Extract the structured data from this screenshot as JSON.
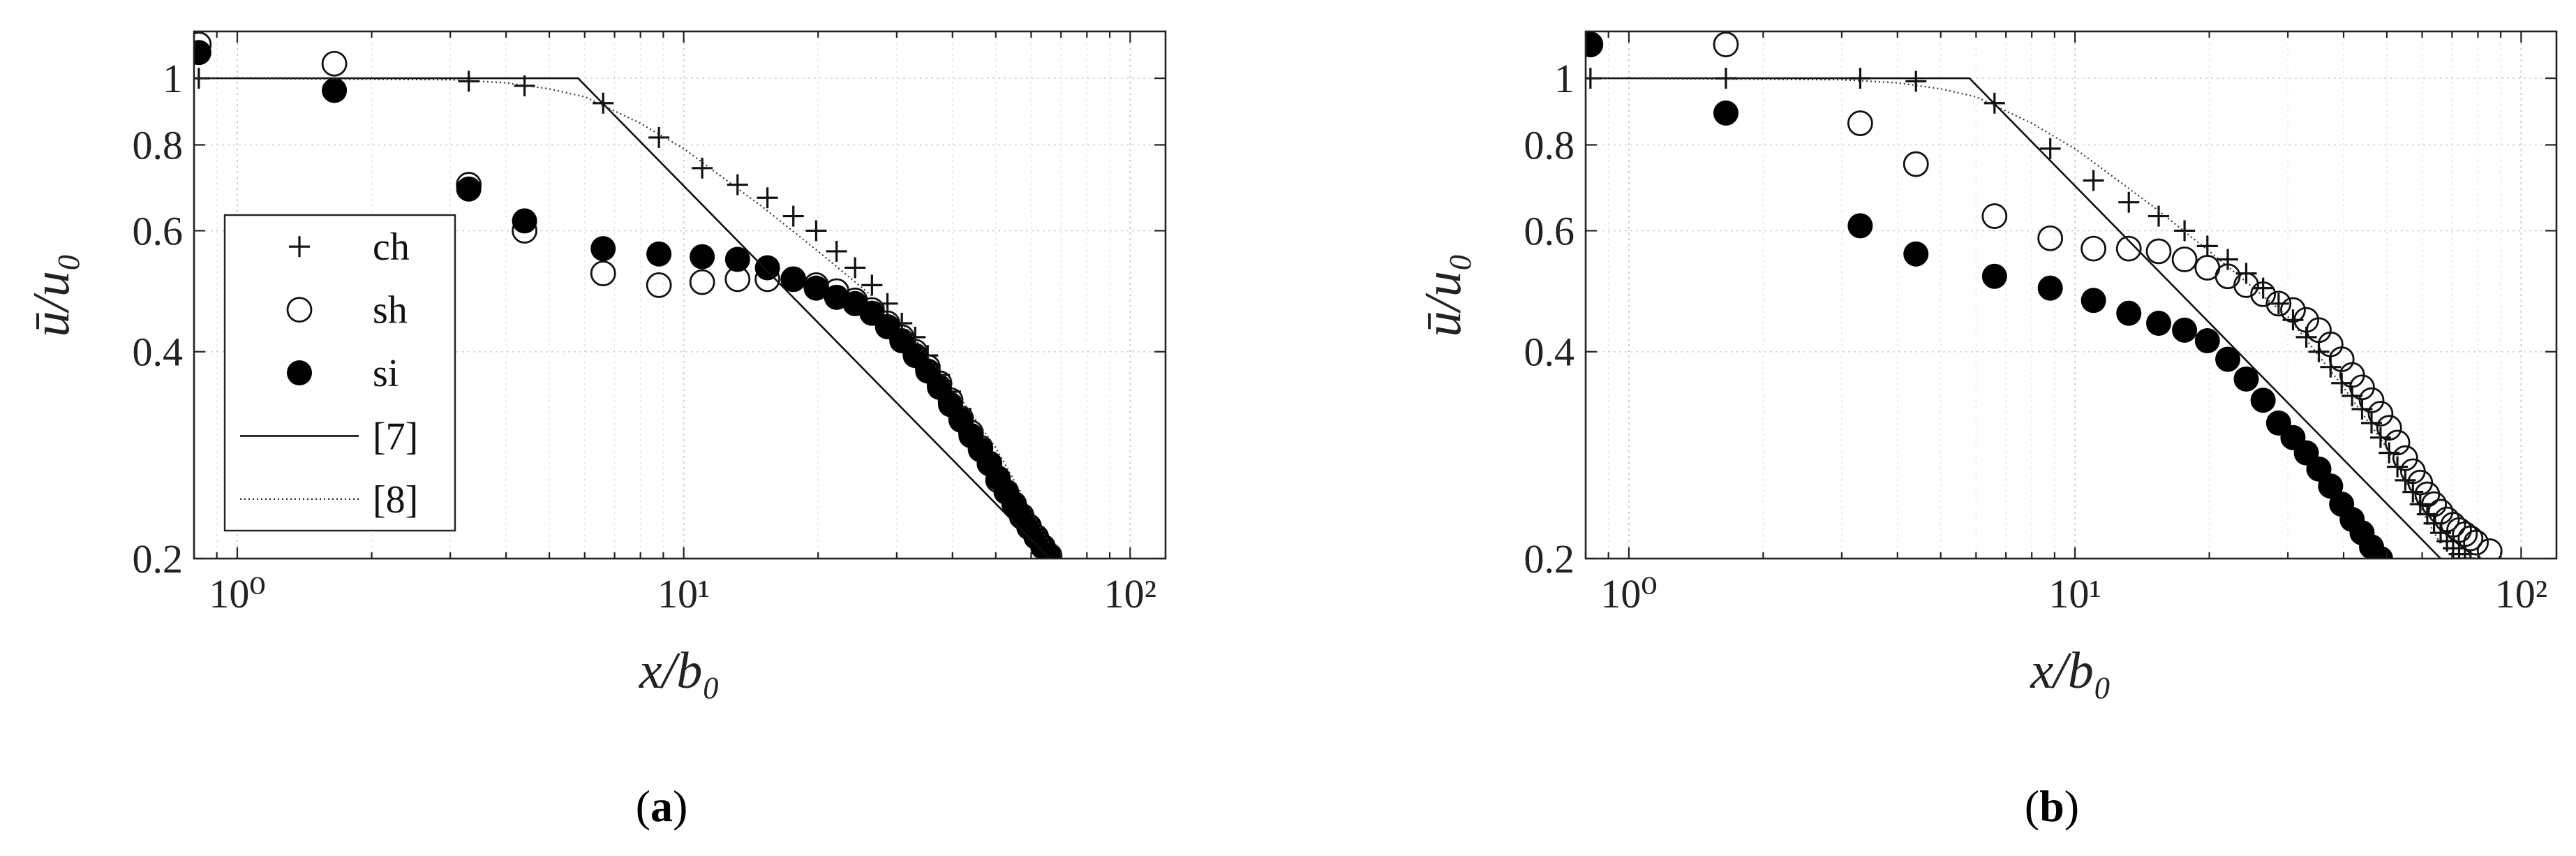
{
  "figure": {
    "panels": [
      {
        "caption_open": "(",
        "caption_letter": "a",
        "caption_close": ")"
      },
      {
        "caption_open": "(",
        "caption_letter": "b",
        "caption_close": ")"
      }
    ]
  },
  "chart_data": [
    {
      "type": "scatter",
      "panel": "a",
      "xlabel": "x/b₀",
      "ylabel": "ū/u₀",
      "xscale": "log",
      "yscale": "log",
      "xlim": [
        0.8,
        120
      ],
      "ylim": [
        0.2,
        1.17
      ],
      "xticks": [
        1,
        10,
        100
      ],
      "xticklabels": [
        "10⁰",
        "10¹",
        "10²"
      ],
      "yticks": [
        0.2,
        0.4,
        0.6,
        0.8,
        1
      ],
      "yticklabels": [
        "0.2",
        "0.4",
        "0.6",
        "0.8",
        "1"
      ],
      "grid": true,
      "legend_position": "left",
      "series": [
        {
          "name": "ch",
          "marker": "plus",
          "x": [
            0.82,
            3.3,
            4.4,
            6.6,
            8.8,
            11,
            13.2,
            15.4,
            17.6,
            19.8,
            22,
            24.2,
            26.4,
            28.6,
            30.8,
            33,
            35.2,
            37.4,
            39.6,
            41.8,
            44,
            46.2,
            48.4,
            50.6,
            52.8,
            55,
            57.2,
            59.4,
            61.6,
            63.8,
            66
          ],
          "y": [
            1.0,
            0.99,
            0.975,
            0.92,
            0.82,
            0.74,
            0.7,
            0.67,
            0.63,
            0.6,
            0.56,
            0.53,
            0.5,
            0.47,
            0.44,
            0.42,
            0.395,
            0.37,
            0.35,
            0.33,
            0.31,
            0.295,
            0.28,
            0.265,
            0.25,
            0.24,
            0.23,
            0.222,
            0.215,
            0.208,
            0.202
          ]
        },
        {
          "name": "sh",
          "marker": "circle-open",
          "x": [
            0.82,
            1.65,
            3.3,
            4.4,
            6.6,
            8.8,
            11,
            13.2,
            15.4,
            17.6,
            19.8,
            22,
            24.2,
            26.4,
            28.6,
            30.8,
            33,
            35.2,
            37.4,
            39.6,
            41.8,
            44,
            46.2,
            48.4,
            50.6,
            52.8,
            55,
            57.2,
            59.4,
            61.6,
            63.8,
            66
          ],
          "y": [
            1.12,
            1.05,
            0.7,
            0.6,
            0.52,
            0.5,
            0.505,
            0.51,
            0.51,
            0.51,
            0.5,
            0.49,
            0.475,
            0.46,
            0.44,
            0.42,
            0.4,
            0.38,
            0.36,
            0.34,
            0.32,
            0.305,
            0.29,
            0.275,
            0.26,
            0.25,
            0.24,
            0.23,
            0.222,
            0.215,
            0.208,
            0.202
          ]
        },
        {
          "name": "si",
          "marker": "circle-filled",
          "x": [
            0.82,
            1.65,
            3.3,
            4.4,
            6.6,
            8.8,
            11,
            13.2,
            15.4,
            17.6,
            19.8,
            22,
            24.2,
            26.4,
            28.6,
            30.8,
            33,
            35.2,
            37.4,
            39.6,
            41.8,
            44,
            46.2,
            48.4,
            50.6,
            52.8,
            55,
            57.2,
            59.4,
            61.6,
            63.8,
            66
          ],
          "y": [
            1.09,
            0.96,
            0.69,
            0.62,
            0.565,
            0.555,
            0.55,
            0.545,
            0.53,
            0.51,
            0.495,
            0.48,
            0.47,
            0.455,
            0.435,
            0.415,
            0.395,
            0.375,
            0.355,
            0.335,
            0.318,
            0.302,
            0.288,
            0.275,
            0.262,
            0.25,
            0.24,
            0.231,
            0.223,
            0.215,
            0.208,
            0.201
          ]
        },
        {
          "name": "[7]",
          "marker": "line-solid",
          "x": [
            0.8,
            5.8,
            66
          ],
          "y": [
            1.0,
            1.0,
            0.2
          ]
        },
        {
          "name": "[8]",
          "marker": "line-dotted",
          "x": [
            0.8,
            3.0,
            4.0,
            5.0,
            6.0,
            8.0,
            10,
            15,
            20,
            30,
            40,
            50,
            66
          ],
          "y": [
            1.0,
            0.995,
            0.985,
            0.965,
            0.94,
            0.86,
            0.79,
            0.65,
            0.56,
            0.45,
            0.355,
            0.29,
            0.21
          ]
        }
      ]
    },
    {
      "type": "scatter",
      "panel": "b",
      "xlabel": "x/b₀",
      "ylabel": "ū/u₀",
      "xscale": "log",
      "yscale": "log",
      "xlim": [
        0.8,
        120
      ],
      "ylim": [
        0.2,
        1.17
      ],
      "xticks": [
        1,
        10,
        100
      ],
      "xticklabels": [
        "10⁰",
        "10¹",
        "10²"
      ],
      "yticks": [
        0.2,
        0.4,
        0.6,
        0.8,
        1
      ],
      "yticklabels": [
        "0.2",
        "0.4",
        "0.6",
        "0.8",
        "1"
      ],
      "grid": true,
      "series": [
        {
          "name": "ch",
          "marker": "plus",
          "x": [
            0.82,
            1.65,
            3.3,
            4.4,
            6.6,
            8.8,
            11,
            13.2,
            15.4,
            17.6,
            19.8,
            22,
            24.2,
            26.4,
            28.6,
            30.8,
            33,
            35.2,
            37.4,
            39.6,
            41.8,
            44,
            46.2,
            48.4,
            50.6,
            52.8,
            55,
            57.2,
            59.4,
            61.6,
            63.8,
            66,
            68.2,
            70.4,
            72.6,
            74.8,
            77
          ],
          "y": [
            1.0,
            1.0,
            1.0,
            0.99,
            0.92,
            0.79,
            0.71,
            0.66,
            0.63,
            0.6,
            0.57,
            0.545,
            0.52,
            0.495,
            0.47,
            0.445,
            0.42,
            0.4,
            0.38,
            0.36,
            0.345,
            0.33,
            0.315,
            0.3,
            0.285,
            0.272,
            0.26,
            0.25,
            0.24,
            0.232,
            0.225,
            0.218,
            0.212,
            0.207,
            0.203,
            0.2,
            0.198
          ]
        },
        {
          "name": "sh",
          "marker": "circle-open",
          "x": [
            0.82,
            1.65,
            3.3,
            4.4,
            6.6,
            8.8,
            11,
            13.2,
            15.4,
            17.6,
            19.8,
            22,
            24.2,
            26.4,
            28.6,
            30.8,
            33,
            35.2,
            37.4,
            39.6,
            41.8,
            44,
            46.2,
            48.4,
            50.6,
            52.8,
            55,
            57.2,
            59.4,
            61.6,
            63.8,
            66,
            68.2,
            70.4,
            72.6,
            74.8,
            77,
            79.2,
            85
          ],
          "y": [
            1.12,
            1.12,
            0.86,
            0.75,
            0.63,
            0.585,
            0.565,
            0.565,
            0.56,
            0.545,
            0.53,
            0.515,
            0.5,
            0.485,
            0.47,
            0.46,
            0.445,
            0.43,
            0.41,
            0.39,
            0.37,
            0.355,
            0.34,
            0.325,
            0.31,
            0.295,
            0.28,
            0.268,
            0.258,
            0.248,
            0.24,
            0.234,
            0.228,
            0.224,
            0.22,
            0.217,
            0.214,
            0.211,
            0.205
          ]
        },
        {
          "name": "si",
          "marker": "circle-filled",
          "x": [
            0.82,
            1.65,
            3.3,
            4.4,
            6.6,
            8.8,
            11,
            13.2,
            15.4,
            17.6,
            19.8,
            22,
            24.2,
            26.4,
            28.6,
            30.8,
            33,
            35.2,
            37.4,
            39.6,
            41.8,
            44,
            46.2,
            48.4
          ],
          "y": [
            1.12,
            0.89,
            0.61,
            0.555,
            0.515,
            0.495,
            0.475,
            0.455,
            0.44,
            0.43,
            0.415,
            0.39,
            0.365,
            0.34,
            0.315,
            0.3,
            0.285,
            0.27,
            0.255,
            0.24,
            0.228,
            0.218,
            0.208,
            0.2
          ]
        },
        {
          "name": "[7]",
          "marker": "line-solid",
          "x": [
            0.8,
            5.8,
            66
          ],
          "y": [
            1.0,
            1.0,
            0.2
          ]
        },
        {
          "name": "[8]",
          "marker": "line-dotted",
          "x": [
            0.8,
            3.0,
            4.0,
            5.0,
            6.0,
            8.0,
            10,
            15,
            20,
            30,
            40,
            50,
            66
          ],
          "y": [
            1.0,
            0.995,
            0.985,
            0.965,
            0.94,
            0.86,
            0.79,
            0.65,
            0.56,
            0.45,
            0.355,
            0.29,
            0.21
          ]
        }
      ]
    }
  ]
}
